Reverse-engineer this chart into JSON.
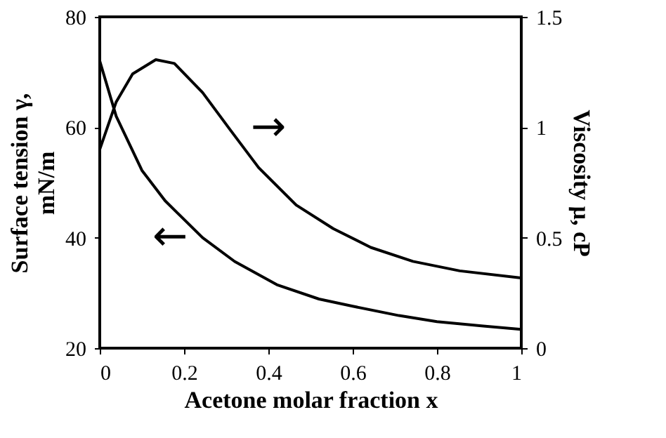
{
  "chart_data": {
    "type": "line",
    "xlabel": "Acetone molar fraction x",
    "ylabel": "Surface tension γ,\nmN/m",
    "y2label": "Viscosity μ, cP",
    "series": [
      {
        "color": "#000000",
        "x": [
          0,
          0.039,
          0.1,
          0.155,
          0.244,
          0.32,
          0.42,
          0.52,
          0.6,
          0.71,
          0.8,
          0.91,
          1
        ],
        "values": [
          72,
          62,
          52.2,
          46.7,
          40,
          35.7,
          31.5,
          28.9,
          27.6,
          25.9,
          24.8,
          24,
          23.4
        ]
      },
      {
        "color": "#000000",
        "axis": "y2",
        "x": [
          0,
          0.039,
          0.078,
          0.133,
          0.177,
          0.244,
          0.31,
          0.377,
          0.466,
          0.554,
          0.643,
          0.743,
          0.854,
          1
        ],
        "values": [
          0.9,
          1.115,
          1.242,
          1.306,
          1.289,
          1.157,
          0.987,
          0.817,
          0.648,
          0.541,
          0.456,
          0.393,
          0.35,
          0.318
        ]
      }
    ],
    "xlim": [
      0,
      1
    ],
    "xticks": [
      0,
      0.2,
      0.4,
      0.6,
      0.8,
      1
    ],
    "ylim": [
      20,
      80
    ],
    "yticks": [
      20,
      40,
      60,
      80
    ],
    "y2lim": [
      0,
      1.5
    ],
    "y2ticks": [
      0,
      0.5,
      1,
      1.5
    ],
    "annotations": [
      "←",
      "→"
    ],
    "grid": false,
    "marker": "none",
    "line_style": "solid"
  }
}
